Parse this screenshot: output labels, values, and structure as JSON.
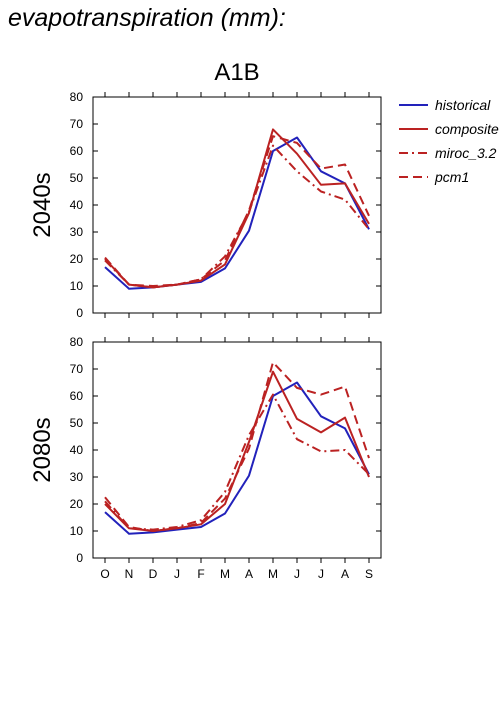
{
  "page_title": "evapotranspiration (mm):",
  "chart_data": [
    {
      "type": "line",
      "title": "A1B",
      "ylabel": "2040s",
      "xlabel": "",
      "categories": [
        "O",
        "N",
        "D",
        "J",
        "F",
        "M",
        "A",
        "M",
        "J",
        "J",
        "A",
        "S"
      ],
      "ylim": [
        0,
        80
      ],
      "yticks": [
        0,
        10,
        20,
        30,
        40,
        50,
        60,
        70,
        80
      ],
      "series": [
        {
          "name": "historical",
          "color": "#2222bb",
          "dash": "solid",
          "values": [
            17,
            9,
            9.5,
            10.5,
            11.5,
            16.5,
            30.5,
            60,
            65,
            52.5,
            48,
            31
          ]
        },
        {
          "name": "composite",
          "color": "#bb2222",
          "dash": "solid",
          "values": [
            20,
            10.5,
            9.5,
            10.5,
            12,
            18,
            37,
            68,
            59,
            47.5,
            48,
            33
          ]
        },
        {
          "name": "miroc_3.2",
          "color": "#bb2222",
          "dash": "dashdot",
          "values": [
            19.5,
            10.5,
            9.5,
            10.5,
            12.5,
            21,
            37.5,
            62,
            52.5,
            45,
            42,
            31
          ]
        },
        {
          "name": "pcm1",
          "color": "#bb2222",
          "dash": "dash",
          "values": [
            20.5,
            10.5,
            10,
            10.5,
            12.5,
            19.5,
            38,
            65.5,
            63,
            53.5,
            55,
            36
          ]
        }
      ]
    },
    {
      "type": "line",
      "title": "",
      "ylabel": "2080s",
      "xlabel": "",
      "categories": [
        "O",
        "N",
        "D",
        "J",
        "F",
        "M",
        "A",
        "M",
        "J",
        "J",
        "A",
        "S"
      ],
      "ylim": [
        0,
        80
      ],
      "yticks": [
        0,
        10,
        20,
        30,
        40,
        50,
        60,
        70,
        80
      ],
      "series": [
        {
          "name": "historical",
          "color": "#2222bb",
          "dash": "solid",
          "values": [
            17,
            9,
            9.5,
            10.5,
            11.5,
            16.5,
            30.5,
            60,
            65,
            52.5,
            48,
            31
          ]
        },
        {
          "name": "composite",
          "color": "#bb2222",
          "dash": "solid",
          "values": [
            20,
            11,
            10,
            11,
            12.5,
            20,
            43,
            69,
            51.5,
            46.5,
            52,
            30
          ]
        },
        {
          "name": "miroc_3.2",
          "color": "#bb2222",
          "dash": "dashdot",
          "values": [
            21,
            11,
            10.5,
            11.5,
            14,
            24.5,
            45.5,
            60.5,
            44,
            39.5,
            40,
            31
          ]
        },
        {
          "name": "pcm1",
          "color": "#bb2222",
          "dash": "dash",
          "values": [
            22.5,
            11.5,
            10,
            11,
            13,
            22,
            40.5,
            72.5,
            63,
            60.5,
            63.5,
            37
          ]
        }
      ]
    }
  ],
  "legend": {
    "placement": "right",
    "items": [
      {
        "label": "historical",
        "color": "#2222bb",
        "dash": "solid"
      },
      {
        "label": "composite",
        "color": "#bb2222",
        "dash": "solid"
      },
      {
        "label": "miroc_3.2",
        "color": "#bb2222",
        "dash": "dashdot"
      },
      {
        "label": "pcm1",
        "color": "#bb2222",
        "dash": "dash"
      }
    ]
  }
}
